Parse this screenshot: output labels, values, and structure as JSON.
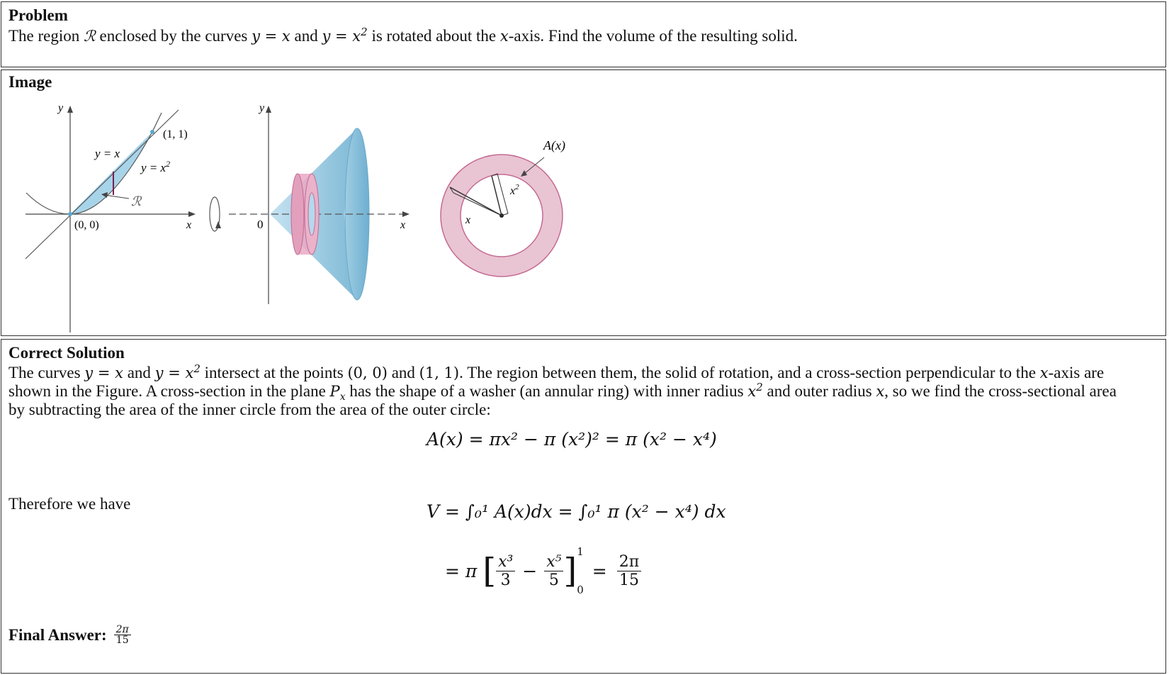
{
  "problem": {
    "heading": "Problem",
    "text_1": "The region",
    "region_symbol": "ℛ",
    "text_2": "enclosed by the curves",
    "curve_1": "y = x",
    "text_and": "and",
    "curve_2_base": "y = x",
    "curve_2_exp": "2",
    "text_3": "is rotated about the",
    "axis_var": "x",
    "text_4": "-axis. Find the volume of the resulting solid."
  },
  "image": {
    "heading": "Image",
    "fig1": {
      "y_axis": "y",
      "x_axis": "x",
      "label_line": "y = x",
      "label_parabola_base": "y = x",
      "label_parabola_exp": "2",
      "point_top": "(1, 1)",
      "point_origin": "(0, 0)",
      "region": "ℛ"
    },
    "fig2": {
      "y_axis": "y",
      "x_axis": "x",
      "origin": "0"
    },
    "fig3": {
      "area_label": "A(x)",
      "outer_radius": "x",
      "inner_radius_base": "x",
      "inner_radius_exp": "2"
    },
    "colors": {
      "region_blue": "#a8d4ea",
      "cone_blue": "#8cc3dd",
      "washer_pink": "#e9c4d3",
      "washer_edge": "#c46a93"
    }
  },
  "solution": {
    "heading": "Correct Solution",
    "line1": {
      "t1": "The curves",
      "c1": "y = x",
      "t2": "and",
      "c2_base": "y = x",
      "c2_exp": "2",
      "t3": "intersect at the points",
      "p1": "(0, 0)",
      "t4": "and",
      "p2": "(1, 1)",
      "t5": ". The region between them, the solid of rotation, and a cross-section perpendicular to the",
      "var": "x",
      "t6": "-axis are"
    },
    "line2": {
      "t1": "shown in the Figure. A cross-section in the plane",
      "plane": "P",
      "plane_sub": "x",
      "t2": "has the shape of a washer (an annular ring) with inner radius",
      "inner_base": "x",
      "inner_exp": "2",
      "t3": "and outer radius",
      "outer": "x",
      "t4": ", so we find the cross-sectional area"
    },
    "line3": "by subtracting the area of the inner circle from the area of the outer circle:",
    "equation_1": "A(x) = πx² − π (x²)² = π (x² − x⁴)",
    "therefore": "Therefore we have",
    "equation_2": "V = ∫₀¹ A(x)dx = ∫₀¹ π (x² − x⁴) dx",
    "equation_3_lhs": "= π",
    "eq3_num_1": "x³",
    "eq3_den_1": "3",
    "eq3_minus": "−",
    "eq3_num_2": "x⁵",
    "eq3_den_2": "5",
    "eq3_upper": "1",
    "eq3_lower": "0",
    "eq3_equals": "=",
    "eq3_result_num": "2π",
    "eq3_result_den": "15",
    "final_label": "Final Answer:",
    "final_num": "2π",
    "final_den": "15"
  }
}
